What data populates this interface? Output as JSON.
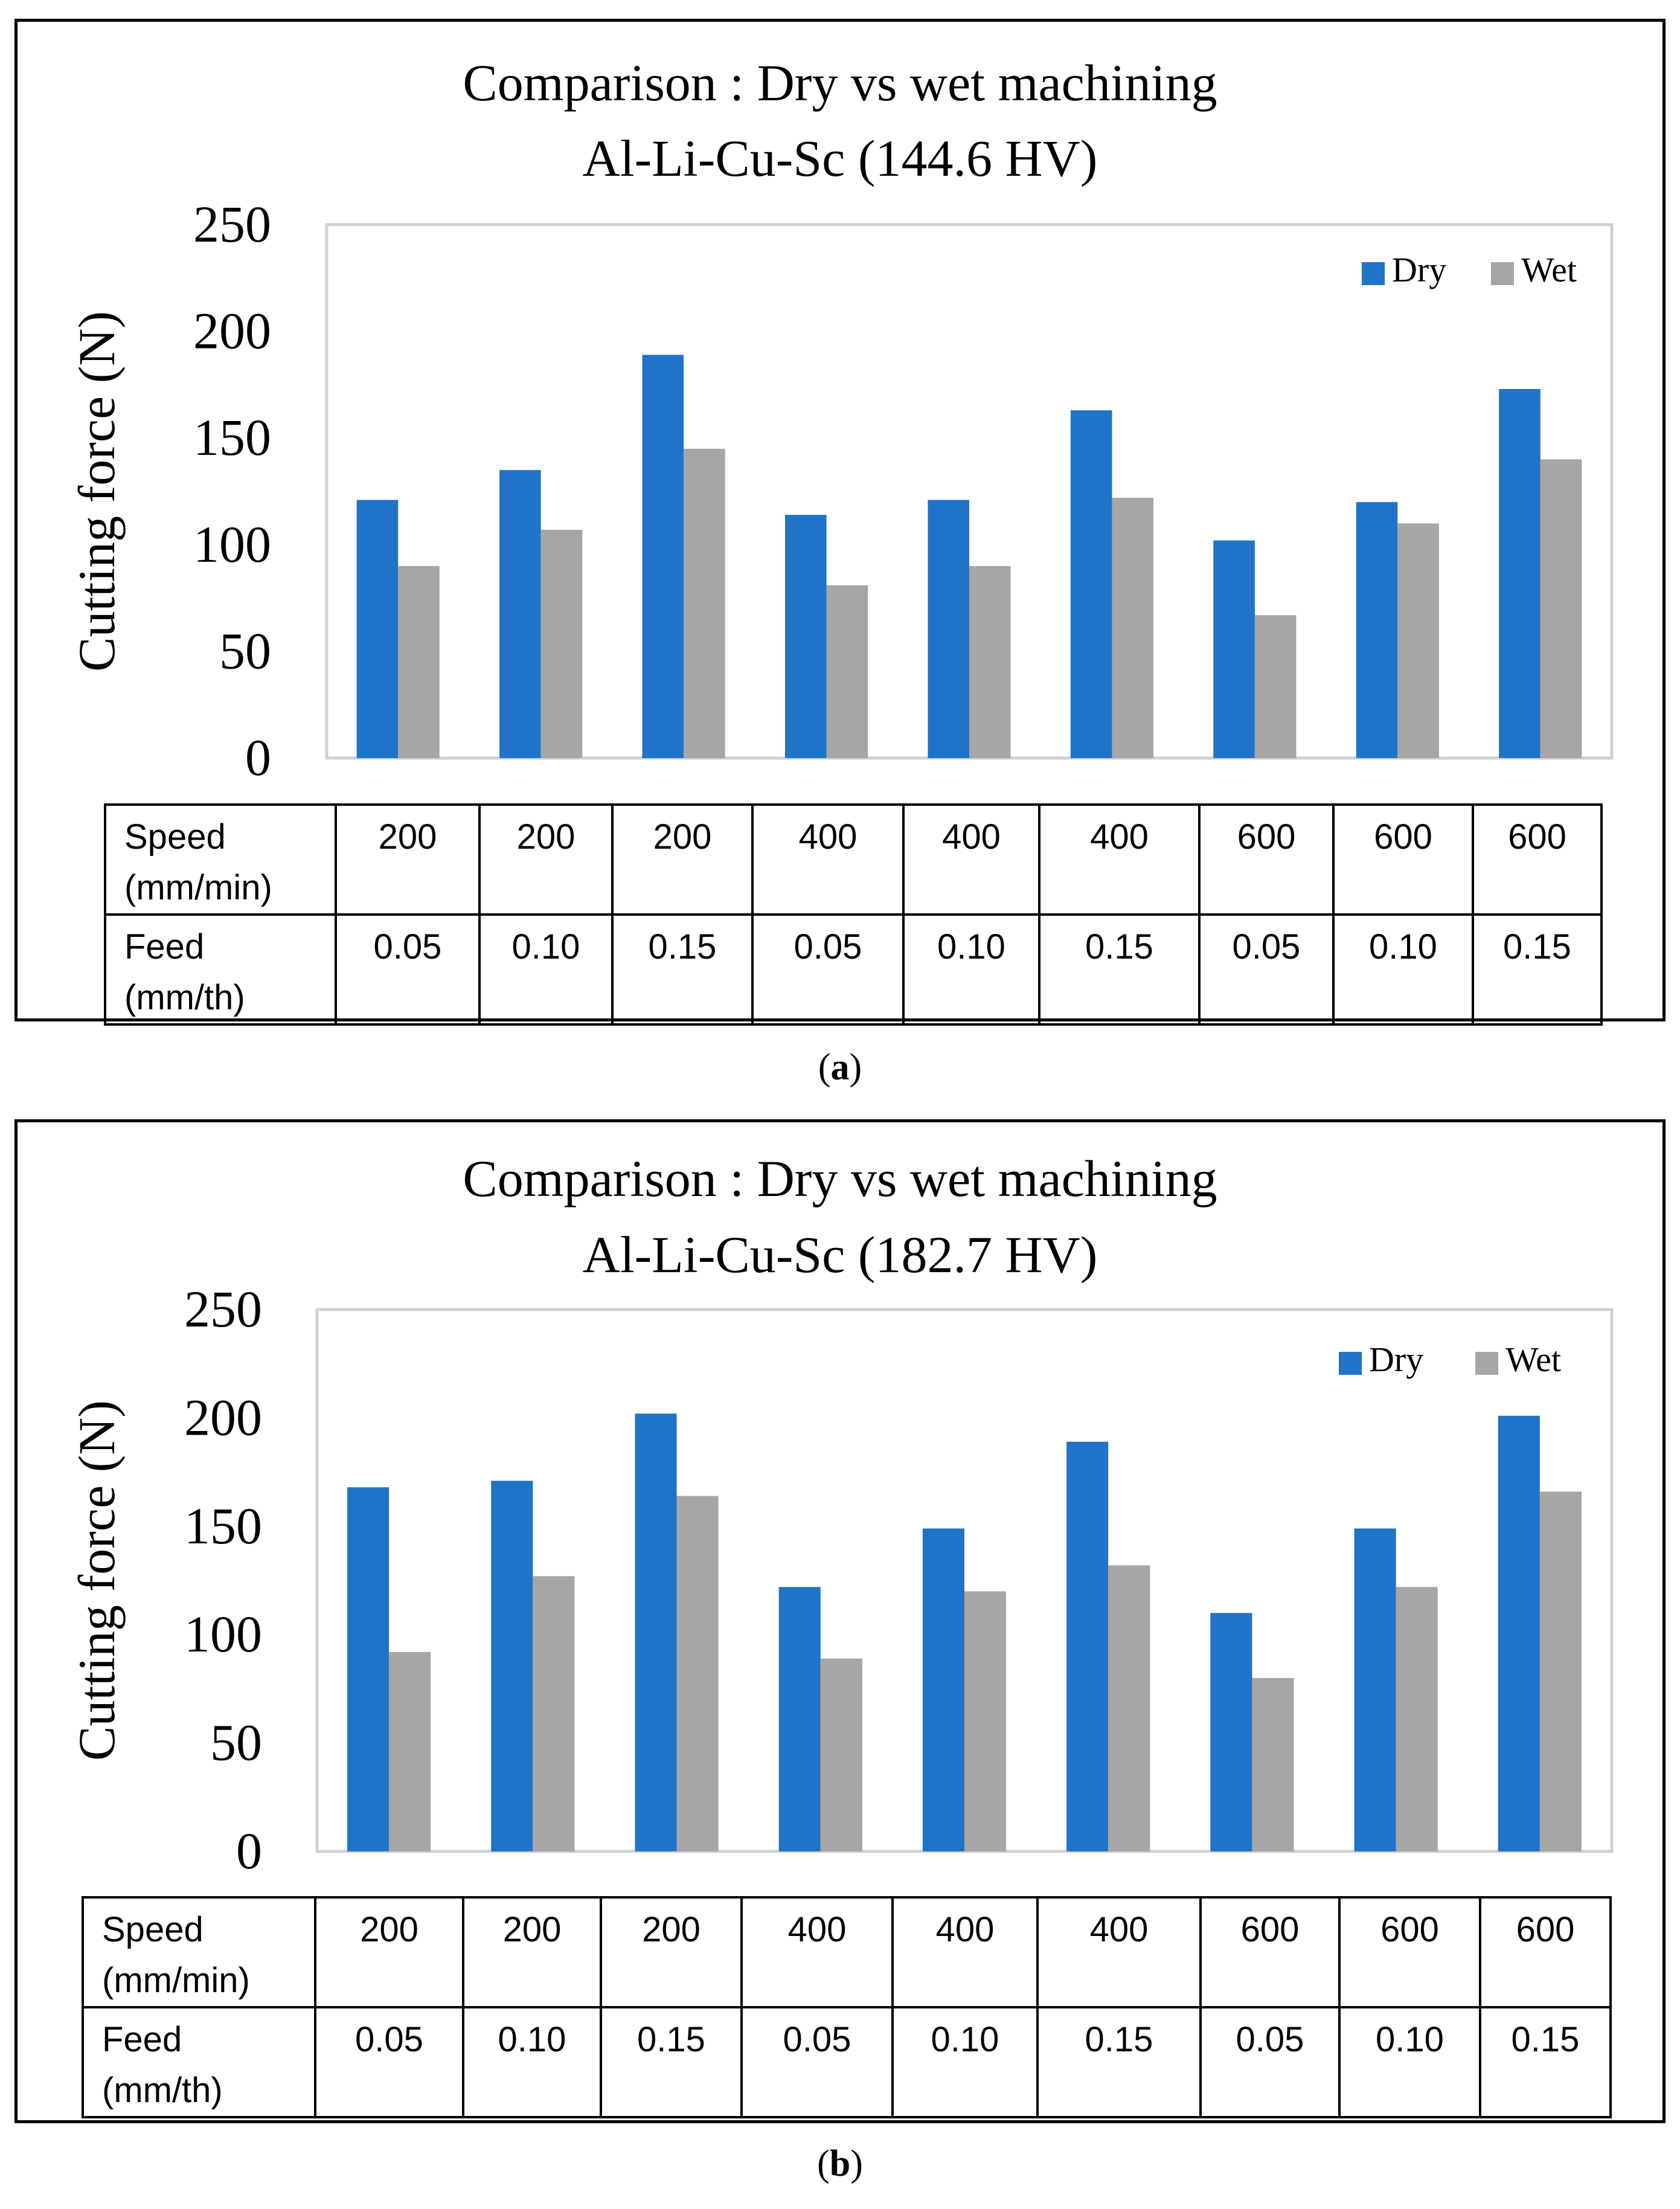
{
  "chart_data": [
    {
      "type": "bar",
      "title": "Comparison : Dry vs wet machining",
      "subtitle": "Al-Li-Cu-Sc  (144.6 HV)",
      "xlabel": "",
      "ylabel": "Cutting force (N)",
      "ylim": [
        0,
        250
      ],
      "yticks": [
        "0",
        "50",
        "100",
        "150",
        "200",
        "250"
      ],
      "grid": false,
      "legend_position": "top-right",
      "colors": {
        "Dry": "#1f73c9",
        "Wet": "#a6a6a6"
      },
      "series": [
        {
          "name": "Dry",
          "values": [
            121,
            135,
            189,
            114,
            121,
            163,
            102,
            120,
            173
          ]
        },
        {
          "name": "Wet",
          "values": [
            90,
            107,
            145,
            81,
            90,
            122,
            67,
            110,
            140
          ]
        }
      ],
      "table": {
        "speed_label": [
          "Speed",
          "(mm/min)"
        ],
        "feed_label": [
          "Feed",
          "(mm/th)"
        ],
        "speed": [
          "200",
          "200",
          "200",
          "400",
          "400",
          "400",
          "600",
          "600",
          "600"
        ],
        "feed": [
          "0.05",
          "0.10",
          "0.15",
          "0.05",
          "0.10",
          "0.15",
          "0.05",
          "0.10",
          "0.15"
        ]
      },
      "caption": "a"
    },
    {
      "type": "bar",
      "title": "Comparison : Dry vs wet machining",
      "subtitle": "Al-Li-Cu-Sc (182.7 HV)",
      "xlabel": "",
      "ylabel": "Cutting force (N)",
      "ylim": [
        0,
        250
      ],
      "yticks": [
        "0",
        "50",
        "100",
        "150",
        "200",
        "250"
      ],
      "grid": false,
      "legend_position": "top-right",
      "colors": {
        "Dry": "#1f73c9",
        "Wet": "#a6a6a6"
      },
      "series": [
        {
          "name": "Dry",
          "values": [
            168,
            171,
            202,
            122,
            149,
            189,
            110,
            149,
            201
          ]
        },
        {
          "name": "Wet",
          "values": [
            92,
            127,
            164,
            89,
            120,
            132,
            80,
            122,
            166
          ]
        }
      ],
      "table": {
        "speed_label": [
          "Speed",
          "(mm/min)"
        ],
        "feed_label": [
          "Feed",
          "(mm/th)"
        ],
        "speed": [
          "200",
          "200",
          "200",
          "400",
          "400",
          "400",
          "600",
          "600",
          "600"
        ],
        "feed": [
          "0.05",
          "0.10",
          "0.15",
          "0.05",
          "0.10",
          "0.15",
          "0.05",
          "0.10",
          "0.15"
        ]
      },
      "caption": "b"
    }
  ]
}
